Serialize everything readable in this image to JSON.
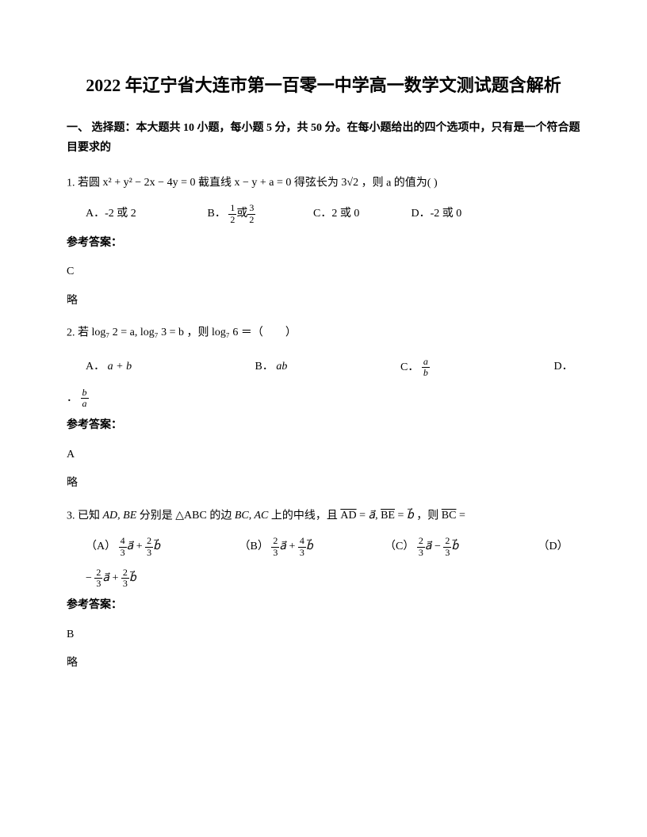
{
  "title": "2022 年辽宁省大连市第一百零一中学高一数学文测试题含解析",
  "section_header": "一、 选择题：本大题共 10 小题，每小题 5 分，共 50 分。在每小题给出的四个选项中，只有是一个符合题目要求的",
  "q1": {
    "prefix": "1. 若圆",
    "eq1": " x² + y² − 2x − 4y = 0 ",
    "mid1": "截直线",
    "eq2": " x − y + a = 0 ",
    "mid2": "得弦长为",
    "eq3": " 3√2 ",
    "suffix": "，则 a 的值为(   )",
    "optA_label": "A．",
    "optA": "-2 或 2",
    "optB_label": "B．",
    "optB_frac1_num": "1",
    "optB_frac1_den": "2",
    "optB_or": "或",
    "optB_frac2_num": "3",
    "optB_frac2_den": "2",
    "optC_label": "C．",
    "optC": "2 或 0",
    "optD_label": "D．",
    "optD": "-2 或 0",
    "answer_label": "参考答案：",
    "answer": "C",
    "note": "略"
  },
  "q2": {
    "prefix": "2. 若",
    "eq1": " log₇ 2 = a, log₇ 3 = b ",
    "mid1": "，则",
    "eq2": " log₇ 6 ",
    "suffix": "＝（　　）",
    "optA_label": "A．",
    "optA": "a + b",
    "optB_label": "B．",
    "optB": "ab",
    "optC_label": "C．",
    "optC_num": "a",
    "optC_den": "b",
    "optD_label": "D．",
    "optD_num": "b",
    "optD_den": "a",
    "answer_label": "参考答案：",
    "answer": "A",
    "note": "略"
  },
  "q3": {
    "prefix": "3. 已知",
    "eq1": " AD, BE ",
    "mid1": "分别是",
    "eq2": " △ABC ",
    "mid2": "的边",
    "eq3": " BC, AC ",
    "mid3": "上的中线，且",
    "eq4_html": "<span class='overline'>AD</span> = <i>a⃗</i>, <span class='overline'>BE</span> = <i>b⃗</i>",
    "mid4": "，则",
    "eq5_html": "<span class='overline'>BC</span> =",
    "optA_label": "（A）",
    "optB_label": "（B）",
    "optC_label": "（C）",
    "optD_label": "（D）",
    "frac_4_3": "4",
    "frac_3": "3",
    "frac_2_3": "2",
    "vec_a": "a⃗",
    "vec_b": "b⃗",
    "plus": " + ",
    "minus": " − ",
    "neg": "− ",
    "answer_label": "参考答案：",
    "answer": "B",
    "note": "略"
  }
}
